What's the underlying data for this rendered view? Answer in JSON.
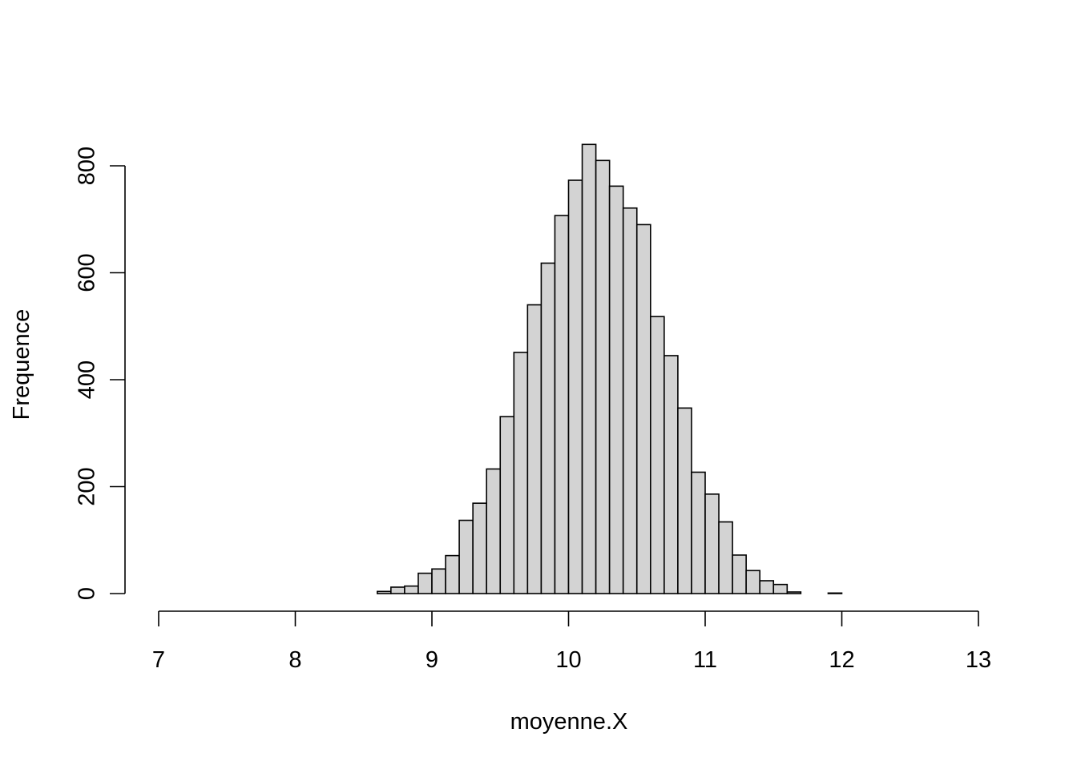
{
  "chart_data": {
    "type": "bar",
    "subtype": "histogram",
    "title": "",
    "xlabel": "moyenne.X",
    "ylabel": "Frequence",
    "xlim": [
      7,
      13
    ],
    "ylim": [
      0,
      840
    ],
    "x_ticks": [
      7,
      8,
      9,
      10,
      11,
      12,
      13
    ],
    "y_ticks": [
      0,
      200,
      400,
      600,
      800
    ],
    "bin_width": 0.1,
    "bins": [
      {
        "x0": 8.1,
        "x1": 8.2,
        "count": 0
      },
      {
        "x0": 8.2,
        "x1": 8.3,
        "count": 0
      },
      {
        "x0": 8.3,
        "x1": 8.4,
        "count": 0
      },
      {
        "x0": 8.4,
        "x1": 8.5,
        "count": 0
      },
      {
        "x0": 8.5,
        "x1": 8.6,
        "count": 0
      },
      {
        "x0": 8.6,
        "x1": 8.7,
        "count": 4
      },
      {
        "x0": 8.7,
        "x1": 8.8,
        "count": 12
      },
      {
        "x0": 8.8,
        "x1": 8.9,
        "count": 14
      },
      {
        "x0": 8.9,
        "x1": 9.0,
        "count": 38
      },
      {
        "x0": 9.0,
        "x1": 9.1,
        "count": 46
      },
      {
        "x0": 9.1,
        "x1": 9.2,
        "count": 71
      },
      {
        "x0": 9.2,
        "x1": 9.3,
        "count": 137
      },
      {
        "x0": 9.3,
        "x1": 9.4,
        "count": 169
      },
      {
        "x0": 9.4,
        "x1": 9.5,
        "count": 233
      },
      {
        "x0": 9.5,
        "x1": 9.6,
        "count": 331
      },
      {
        "x0": 9.6,
        "x1": 9.7,
        "count": 451
      },
      {
        "x0": 9.7,
        "x1": 9.8,
        "count": 540
      },
      {
        "x0": 9.8,
        "x1": 9.9,
        "count": 618
      },
      {
        "x0": 9.9,
        "x1": 10.0,
        "count": 707
      },
      {
        "x0": 10.0,
        "x1": 10.1,
        "count": 773
      },
      {
        "x0": 10.1,
        "x1": 10.2,
        "count": 840
      },
      {
        "x0": 10.2,
        "x1": 10.3,
        "count": 810
      },
      {
        "x0": 10.3,
        "x1": 10.4,
        "count": 762
      },
      {
        "x0": 10.4,
        "x1": 10.5,
        "count": 721
      },
      {
        "x0": 10.5,
        "x1": 10.6,
        "count": 690
      },
      {
        "x0": 10.6,
        "x1": 10.7,
        "count": 518
      },
      {
        "x0": 10.7,
        "x1": 10.8,
        "count": 445
      },
      {
        "x0": 10.8,
        "x1": 10.9,
        "count": 347
      },
      {
        "x0": 10.9,
        "x1": 11.0,
        "count": 227
      },
      {
        "x0": 11.0,
        "x1": 11.1,
        "count": 186
      },
      {
        "x0": 11.1,
        "x1": 11.2,
        "count": 134
      },
      {
        "x0": 11.2,
        "x1": 11.3,
        "count": 72
      },
      {
        "x0": 11.3,
        "x1": 11.4,
        "count": 43
      },
      {
        "x0": 11.4,
        "x1": 11.5,
        "count": 24
      },
      {
        "x0": 11.5,
        "x1": 11.6,
        "count": 17
      },
      {
        "x0": 11.6,
        "x1": 11.7,
        "count": 3
      },
      {
        "x0": 11.7,
        "x1": 11.8,
        "count": 0
      },
      {
        "x0": 11.8,
        "x1": 11.9,
        "count": 0
      },
      {
        "x0": 11.9,
        "x1": 12.0,
        "count": 1
      },
      {
        "x0": 12.0,
        "x1": 12.1,
        "count": 0
      }
    ],
    "bar_fill": "#d3d3d3",
    "bar_stroke": "#000000",
    "grid": false,
    "legend": "none"
  }
}
